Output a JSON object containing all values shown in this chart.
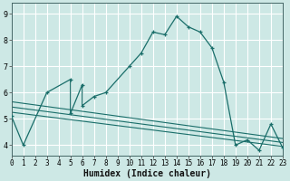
{
  "title": "",
  "xlabel": "Humidex (Indice chaleur)",
  "background_color": "#cde8e5",
  "grid_color": "#b0d8d4",
  "line_color": "#1a6e6a",
  "main_series": {
    "x": [
      0,
      1,
      3,
      5,
      5,
      6,
      6,
      7,
      8,
      10,
      11,
      12,
      13,
      14,
      15,
      16,
      17,
      18,
      19,
      20,
      21,
      22,
      23
    ],
    "y": [
      5.1,
      4.0,
      6.0,
      6.5,
      5.2,
      6.3,
      5.5,
      5.85,
      6.0,
      7.0,
      7.5,
      8.3,
      8.2,
      8.9,
      8.5,
      8.3,
      7.7,
      6.4,
      4.0,
      4.2,
      3.8,
      4.8,
      3.9
    ]
  },
  "reg_lines": [
    {
      "x": [
        0,
        23
      ],
      "y": [
        5.65,
        4.25
      ]
    },
    {
      "x": [
        0,
        23
      ],
      "y": [
        5.45,
        4.1
      ]
    },
    {
      "x": [
        0,
        23
      ],
      "y": [
        5.25,
        3.95
      ]
    }
  ],
  "xlim": [
    0,
    23
  ],
  "ylim": [
    3.6,
    9.4
  ],
  "yticks": [
    4,
    5,
    6,
    7,
    8,
    9
  ],
  "xticks": [
    0,
    1,
    2,
    3,
    4,
    5,
    6,
    7,
    8,
    9,
    10,
    11,
    12,
    13,
    14,
    15,
    16,
    17,
    18,
    19,
    20,
    21,
    22,
    23
  ],
  "tick_fontsize": 6,
  "label_fontsize": 7
}
